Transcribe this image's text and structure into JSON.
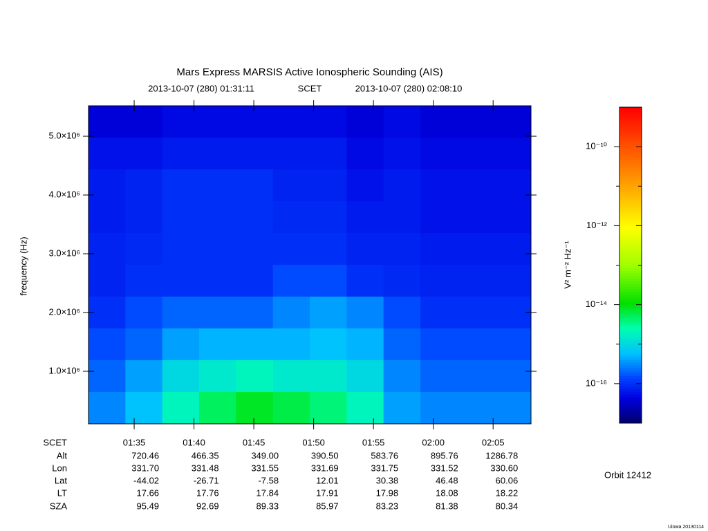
{
  "chart_data": {
    "type": "heatmap",
    "title": "Mars Express MARSIS Active Ionospheric Sounding (AIS)",
    "subtitle_start": "2013-10-07 (280) 01:31:11",
    "subtitle_label": "SCET",
    "subtitle_end": "2013-10-07 (280) 02:08:10",
    "ylabel": "frequency (Hz)",
    "xlim": [
      "01:31:11",
      "02:08:10"
    ],
    "xticks": [
      "01:35",
      "01:40",
      "01:45",
      "01:50",
      "01:55",
      "02:00",
      "02:05"
    ],
    "ylim": [
      106000,
      5518000
    ],
    "yticks": [
      {
        "value": 1000000,
        "label": "1.0×10⁶"
      },
      {
        "value": 2000000,
        "label": "2.0×10⁶"
      },
      {
        "value": 3000000,
        "label": "3.0×10⁶"
      },
      {
        "value": 4000000,
        "label": "4.0×10⁶"
      },
      {
        "value": 5000000,
        "label": "5.0×10⁶"
      }
    ],
    "z": [
      [
        4e-17,
        4e-17,
        5e-17,
        5e-17,
        5e-17,
        5e-17,
        5e-17,
        4e-17,
        5e-17,
        4e-17,
        4e-17,
        4e-17
      ],
      [
        6e-17,
        6e-17,
        7e-17,
        7e-17,
        7e-17,
        7e-17,
        7e-17,
        5e-17,
        6e-17,
        5e-17,
        5e-17,
        5e-17
      ],
      [
        7e-17,
        8e-17,
        1e-16,
        1e-16,
        1e-16,
        8e-17,
        8e-17,
        6e-17,
        7e-17,
        6e-17,
        6e-17,
        6e-17
      ],
      [
        7e-17,
        8e-17,
        1e-16,
        1e-16,
        1e-16,
        9e-17,
        9e-17,
        7e-17,
        7e-17,
        6e-17,
        6e-17,
        6e-17
      ],
      [
        8e-17,
        9e-17,
        1e-16,
        1e-16,
        1e-16,
        1e-16,
        1e-16,
        8e-17,
        8e-17,
        7e-17,
        7e-17,
        7e-17
      ],
      [
        8e-17,
        1e-16,
        1e-16,
        1e-16,
        1e-16,
        1.5e-16,
        1.5e-16,
        1e-16,
        9e-17,
        8e-17,
        8e-17,
        8e-17
      ],
      [
        1e-16,
        1.5e-16,
        2e-16,
        2e-16,
        2e-16,
        3e-16,
        4e-16,
        3e-16,
        1.5e-16,
        1e-16,
        1e-16,
        1e-16
      ],
      [
        1.5e-16,
        2e-16,
        4e-16,
        5e-16,
        5e-16,
        5e-16,
        6e-16,
        5e-16,
        2e-16,
        1.5e-16,
        1.5e-16,
        1.5e-16
      ],
      [
        2e-16,
        4e-16,
        1e-15,
        1.5e-15,
        2e-15,
        1.5e-15,
        1.5e-15,
        1e-15,
        3e-16,
        2e-16,
        2e-16,
        2e-16
      ],
      [
        3e-16,
        6e-16,
        2e-15,
        5e-15,
        8e-15,
        6e-15,
        4e-15,
        2e-15,
        4e-16,
        3e-16,
        3e-16,
        3e-16
      ]
    ],
    "zlim": [
      1e-17,
      1e-09
    ],
    "zscale": "log",
    "zticks": [
      {
        "value": 1e-10,
        "label": "10⁻¹⁰"
      },
      {
        "value": 1e-12,
        "label": "10⁻¹²"
      },
      {
        "value": 1e-14,
        "label": "10⁻¹⁴"
      },
      {
        "value": 1e-16,
        "label": "10⁻¹⁶"
      }
    ],
    "zminorticks": [
      1e-11,
      1e-13,
      1e-15
    ],
    "zlabel": "V² m⁻² Hz⁻¹"
  },
  "ephemeris": {
    "time_label": "SCET",
    "row_labels": [
      "Alt",
      "Lon",
      "Lat",
      "LT",
      "SZA"
    ],
    "rows": [
      [
        "720.46",
        "466.35",
        "349.00",
        "390.50",
        "583.76",
        "895.76",
        "1286.78"
      ],
      [
        "331.70",
        "331.48",
        "331.55",
        "331.69",
        "331.75",
        "331.52",
        "330.60"
      ],
      [
        "-44.02",
        "-26.71",
        "-7.58",
        "12.01",
        "30.38",
        "46.48",
        "60.06"
      ],
      [
        "17.66",
        "17.76",
        "17.84",
        "17.91",
        "17.98",
        "18.08",
        "18.22"
      ],
      [
        "95.49",
        "92.69",
        "89.33",
        "85.97",
        "83.23",
        "81.38",
        "80.34"
      ]
    ]
  },
  "orbit": "Orbit 12412",
  "footer": "Uiowa 20130114"
}
